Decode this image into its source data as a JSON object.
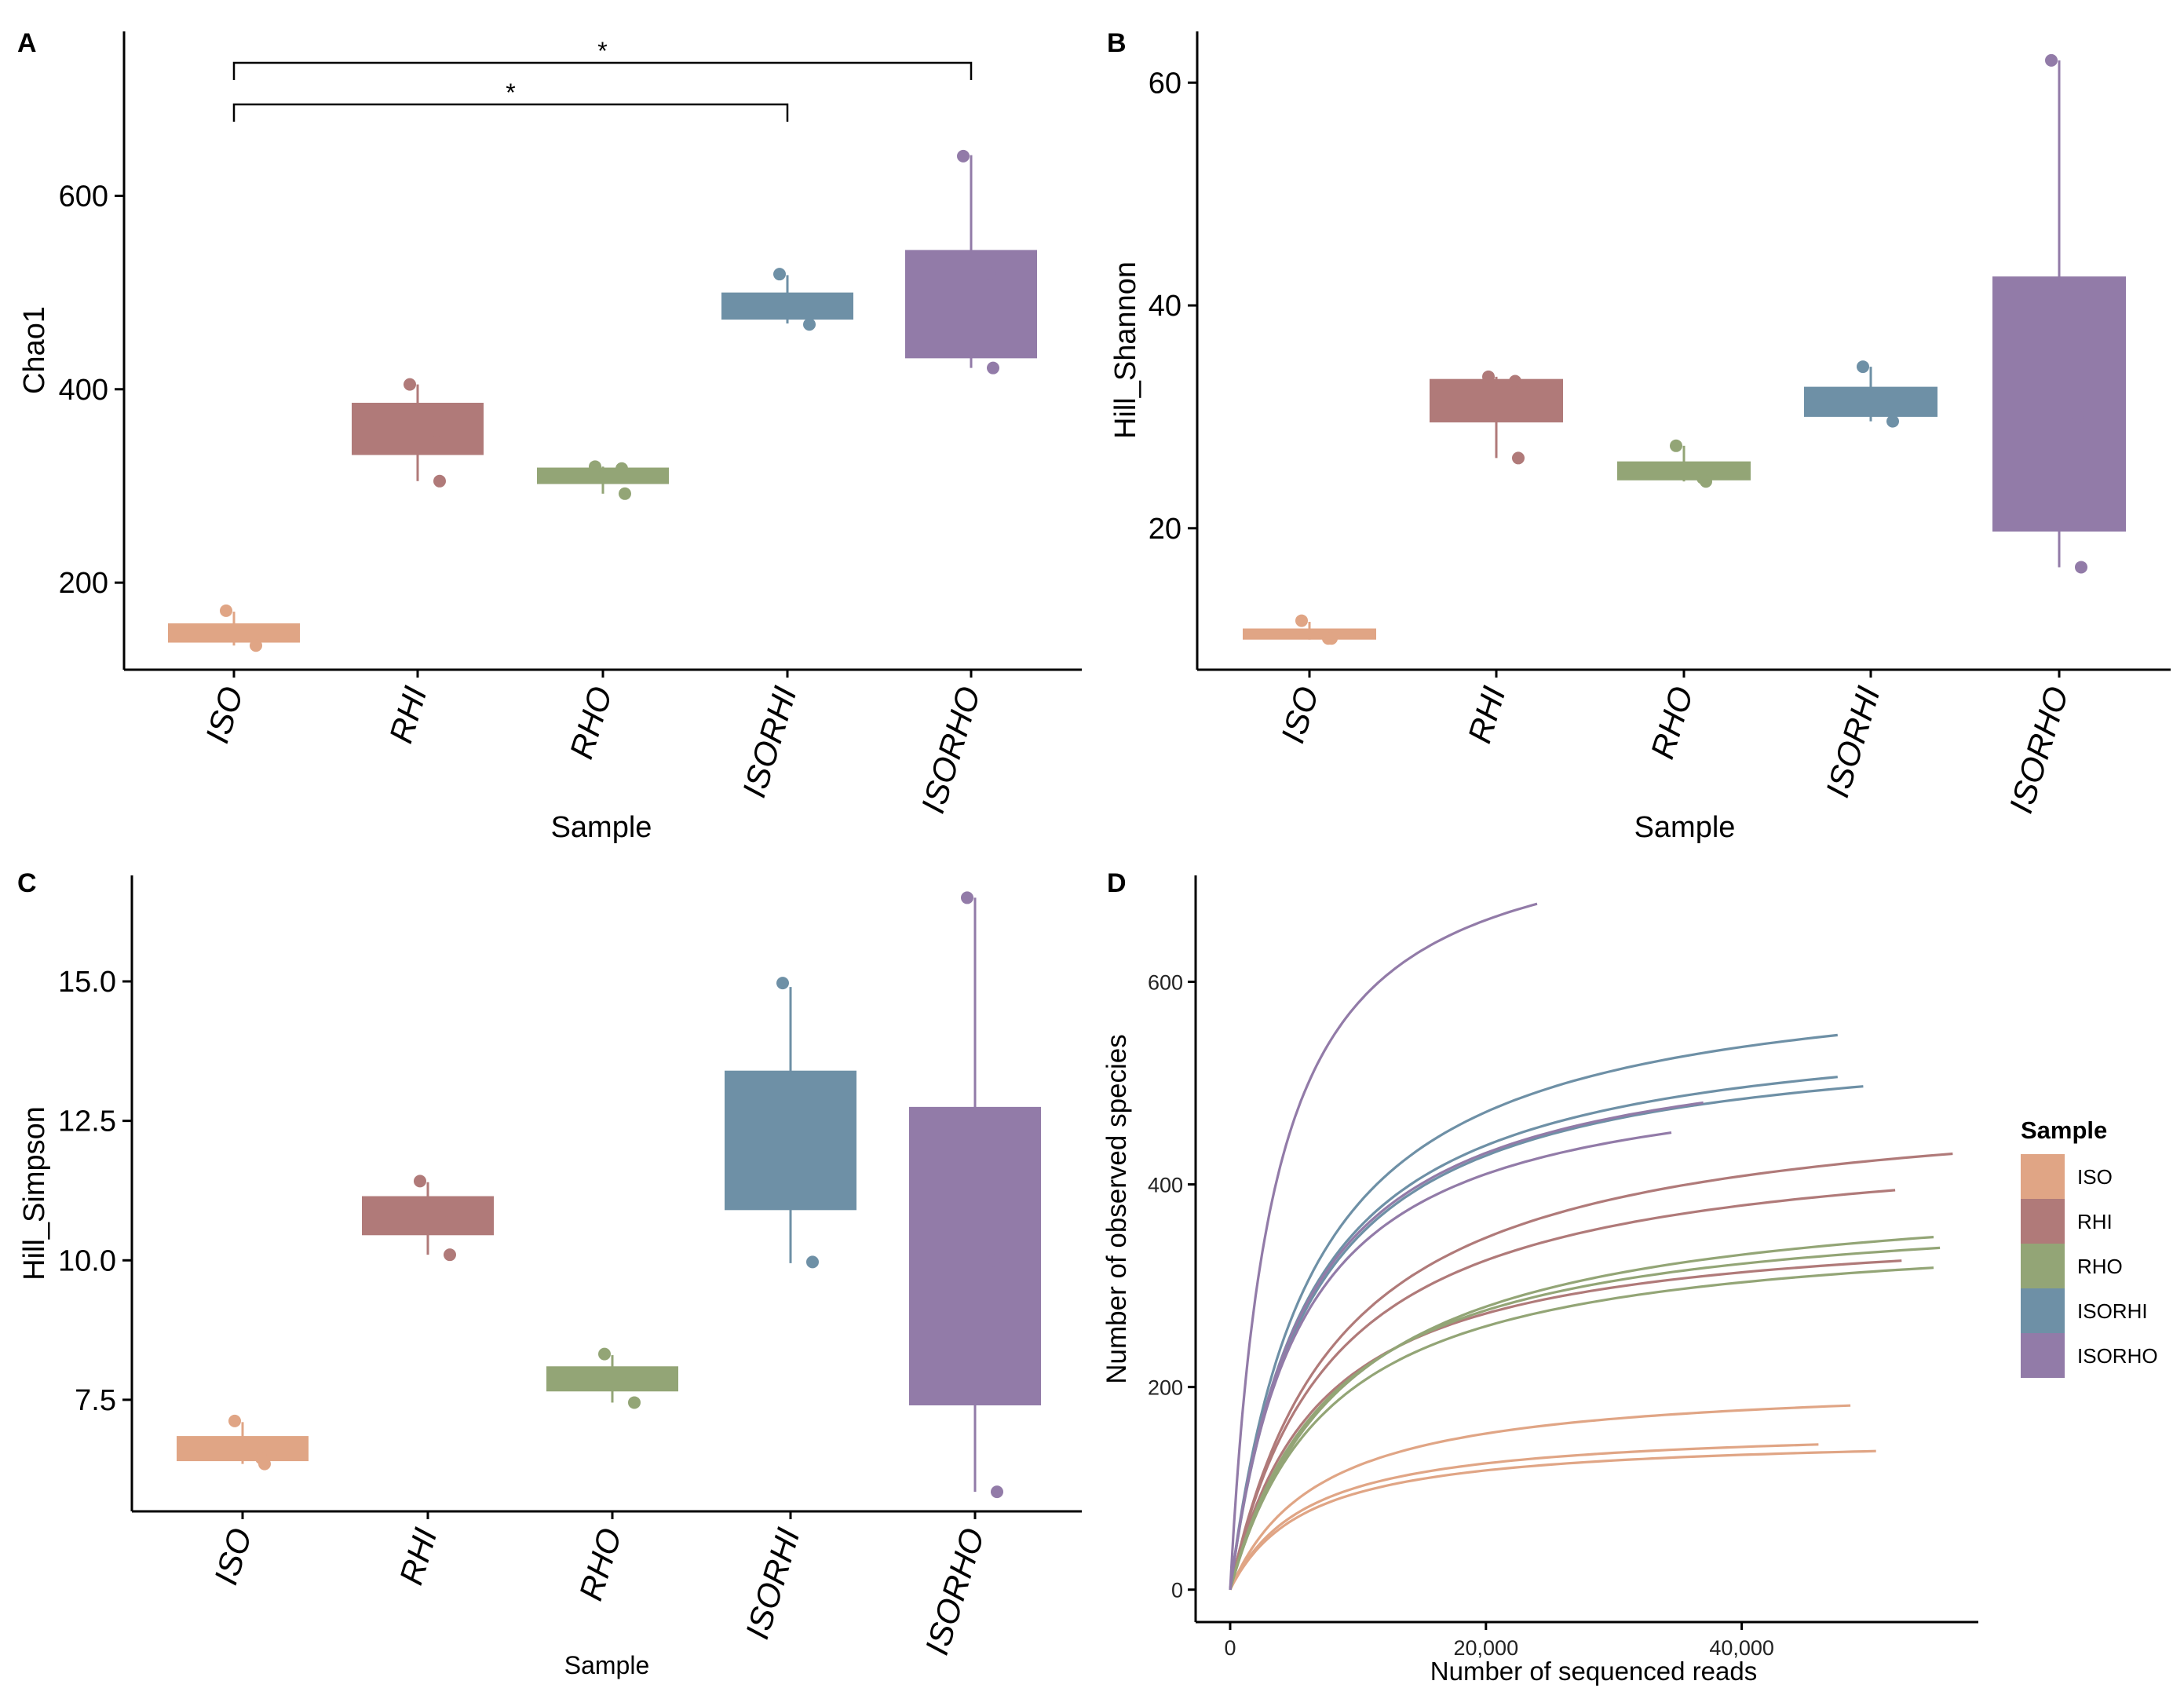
{
  "colors": {
    "ISO": "#E0A585",
    "RHI": "#B07A79",
    "RHO": "#93A576",
    "ISORHI": "#6E90A6",
    "ISORHO": "#927BA8"
  },
  "chart_data": [
    {
      "panel": "A",
      "type": "box",
      "xlabel": "Sample",
      "ylabel": "Chao1",
      "ylim": [
        110,
        770
      ],
      "yticks": [
        200,
        400,
        600
      ],
      "categories": [
        "ISO",
        "RHI",
        "RHO",
        "ISORHI",
        "ISORHO"
      ],
      "boxes": [
        {
          "name": "ISO",
          "q1": 138,
          "median": 152,
          "q3": 158,
          "whisker_low": 135,
          "whisker_high": 170
        },
        {
          "name": "RHI",
          "q1": 332,
          "median": 345,
          "q3": 386,
          "whisker_low": 305,
          "whisker_high": 405
        },
        {
          "name": "RHO",
          "q1": 302,
          "median": 312,
          "q3": 319,
          "whisker_low": 292,
          "whisker_high": 320
        },
        {
          "name": "ISORHI",
          "q1": 472,
          "median": 482,
          "q3": 500,
          "whisker_low": 468,
          "whisker_high": 518
        },
        {
          "name": "ISORHO",
          "q1": 432,
          "median": 520,
          "q3": 544,
          "whisker_low": 422,
          "whisker_high": 642
        }
      ],
      "points": [
        {
          "name": "ISO",
          "values": [
            171,
            145,
            135
          ]
        },
        {
          "name": "RHI",
          "values": [
            405,
            345,
            305
          ]
        },
        {
          "name": "RHO",
          "values": [
            320,
            318,
            292
          ]
        },
        {
          "name": "ISORHI",
          "values": [
            519,
            482,
            467
          ]
        },
        {
          "name": "ISORHO",
          "values": [
            641,
            520,
            422
          ]
        }
      ],
      "significance": [
        {
          "from": "ISO",
          "to": "ISORHO",
          "label": "*"
        },
        {
          "from": "ISO",
          "to": "ISORHI",
          "label": "*"
        }
      ]
    },
    {
      "panel": "B",
      "type": "box",
      "xlabel": "Sample",
      "ylabel": "Hill_Shannon",
      "ylim": [
        7.3,
        64.6
      ],
      "yticks": [
        20,
        40,
        60
      ],
      "categories": [
        "ISO",
        "RHI",
        "RHO",
        "ISORHI",
        "ISORHO"
      ],
      "boxes": [
        {
          "name": "ISO",
          "q1": 10.0,
          "median": 10.5,
          "q3": 11.0,
          "whisker_low": 10.0,
          "whisker_high": 11.6
        },
        {
          "name": "RHI",
          "q1": 29.5,
          "median": 31.0,
          "q3": 33.4,
          "whisker_low": 26.3,
          "whisker_high": 33.6
        },
        {
          "name": "RHO",
          "q1": 24.3,
          "median": 25.0,
          "q3": 26.0,
          "whisker_low": 24.2,
          "whisker_high": 27.4
        },
        {
          "name": "ISORHI",
          "q1": 30.0,
          "median": 31.0,
          "q3": 32.7,
          "whisker_low": 29.6,
          "whisker_high": 34.5
        },
        {
          "name": "ISORHO",
          "q1": 19.7,
          "median": 30.0,
          "q3": 42.6,
          "whisker_low": 16.5,
          "whisker_high": 62.0
        }
      ],
      "points": [
        {
          "name": "ISO",
          "values": [
            11.7,
            10.1,
            10.1
          ]
        },
        {
          "name": "RHI",
          "values": [
            33.6,
            33.2,
            26.3
          ]
        },
        {
          "name": "RHO",
          "values": [
            27.4,
            24.5,
            24.2
          ]
        },
        {
          "name": "ISORHI",
          "values": [
            34.5,
            31.0,
            29.6
          ]
        },
        {
          "name": "ISORHO",
          "values": [
            62.0,
            30.0,
            16.5
          ]
        }
      ]
    },
    {
      "panel": "C",
      "type": "box",
      "xlabel": "Sample",
      "ylabel": "Hill_Simpson",
      "ylim": [
        5.5,
        16.9
      ],
      "yticks": [
        7.5,
        10.0,
        12.5,
        15.0
      ],
      "ytick_labels": [
        "7.5",
        "10.0",
        "12.5",
        "15.0"
      ],
      "categories": [
        "ISO",
        "RHI",
        "RHO",
        "ISORHI",
        "ISORHO"
      ],
      "boxes": [
        {
          "name": "ISO",
          "q1": 6.4,
          "median": 6.6,
          "q3": 6.85,
          "whisker_low": 6.35,
          "whisker_high": 7.1
        },
        {
          "name": "RHI",
          "q1": 10.45,
          "median": 10.9,
          "q3": 11.15,
          "whisker_low": 10.1,
          "whisker_high": 11.4
        },
        {
          "name": "RHO",
          "q1": 7.65,
          "median": 7.9,
          "q3": 8.1,
          "whisker_low": 7.45,
          "whisker_high": 8.3
        },
        {
          "name": "ISORHI",
          "q1": 10.9,
          "median": 12.0,
          "q3": 13.4,
          "whisker_low": 9.95,
          "whisker_high": 14.9
        },
        {
          "name": "ISORHO",
          "q1": 7.4,
          "median": 10.0,
          "q3": 12.75,
          "whisker_low": 5.85,
          "whisker_high": 16.5
        }
      ],
      "points": [
        {
          "name": "ISO",
          "values": [
            7.12,
            6.45,
            6.35
          ]
        },
        {
          "name": "RHI",
          "values": [
            11.42,
            10.9,
            10.1
          ]
        },
        {
          "name": "RHO",
          "values": [
            8.32,
            7.9,
            7.45
          ]
        },
        {
          "name": "ISORHI",
          "values": [
            14.97,
            12.0,
            9.97
          ]
        },
        {
          "name": "ISORHO",
          "values": [
            16.5,
            10.0,
            5.85
          ]
        }
      ]
    },
    {
      "panel": "D",
      "type": "line",
      "xlabel": "Number of sequenced reads",
      "ylabel": "Number of observed species",
      "xlim": [
        -2700,
        58500
      ],
      "ylim": [
        -32,
        705
      ],
      "xticks": [
        0,
        20000,
        40000
      ],
      "xtick_labels": [
        "0",
        "20,000",
        "40,000"
      ],
      "yticks": [
        0,
        200,
        400,
        600
      ],
      "legend_title": "Sample",
      "legend_position": "right",
      "legend_entries": [
        "ISO",
        "RHI",
        "RHO",
        "ISORHI",
        "ISORHO"
      ],
      "series": [
        {
          "name": "ISO",
          "max_reads": 48500,
          "asymptote": 208,
          "half_sat": 7000,
          "end_value": 182
        },
        {
          "name": "ISO",
          "max_reads": 46000,
          "asymptote": 162,
          "half_sat": 6000,
          "end_value": 144
        },
        {
          "name": "ISO",
          "max_reads": 50500,
          "asymptote": 153,
          "half_sat": 6000,
          "end_value": 137
        },
        {
          "name": "RHI",
          "max_reads": 56500,
          "asymptote": 495,
          "half_sat": 8500,
          "end_value": 430
        },
        {
          "name": "RHI",
          "max_reads": 52000,
          "asymptote": 455,
          "half_sat": 8000,
          "end_value": 395
        },
        {
          "name": "RHI",
          "max_reads": 52500,
          "asymptote": 368,
          "half_sat": 7000,
          "end_value": 325
        },
        {
          "name": "RHO",
          "max_reads": 55000,
          "asymptote": 405,
          "half_sat": 9000,
          "end_value": 352
        },
        {
          "name": "RHO",
          "max_reads": 55500,
          "asymptote": 386,
          "half_sat": 8000,
          "end_value": 340
        },
        {
          "name": "RHO",
          "max_reads": 55000,
          "asymptote": 364,
          "half_sat": 8000,
          "end_value": 320
        },
        {
          "name": "ISORHI",
          "max_reads": 47500,
          "asymptote": 620,
          "half_sat": 6300,
          "end_value": 545
        },
        {
          "name": "ISORHI",
          "max_reads": 47500,
          "asymptote": 570,
          "half_sat": 6000,
          "end_value": 503
        },
        {
          "name": "ISORHI",
          "max_reads": 49500,
          "asymptote": 557,
          "half_sat": 6000,
          "end_value": 490
        },
        {
          "name": "ISORHO",
          "max_reads": 24000,
          "asymptote": 770,
          "half_sat": 3300,
          "end_value": 673
        },
        {
          "name": "ISORHO",
          "max_reads": 37000,
          "asymptote": 556,
          "half_sat": 5800,
          "end_value": 472
        },
        {
          "name": "ISORHO",
          "max_reads": 34500,
          "asymptote": 523,
          "half_sat": 5500,
          "end_value": 444
        }
      ]
    }
  ]
}
